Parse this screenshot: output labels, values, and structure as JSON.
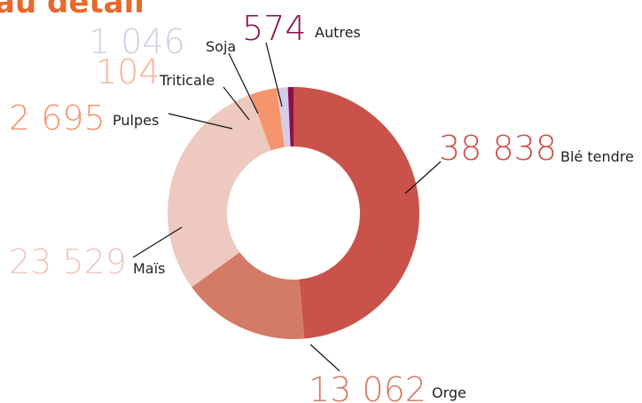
{
  "chart_data": {
    "type": "donut",
    "title": "au détail",
    "categories": [
      "Blé tendre",
      "Orge",
      "Maïs",
      "Pulpes",
      "Triticale",
      "Soja",
      "Autres"
    ],
    "values": [
      38838,
      13062,
      23529,
      2695,
      104,
      1046,
      574
    ],
    "value_labels": [
      "38 838",
      "13 062",
      "23 529",
      "2 695",
      "104",
      "1 046",
      "574"
    ],
    "colors": [
      "#c9524a",
      "#d47b68",
      "#edc9bf",
      "#f4956e",
      "#f7b497",
      "#d3cde6",
      "#8b0f4e"
    ]
  }
}
